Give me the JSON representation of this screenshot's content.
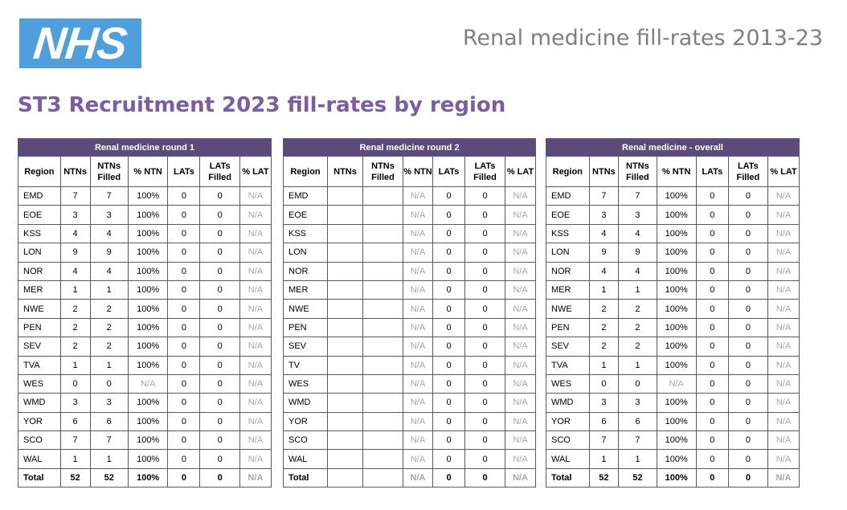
{
  "header": {
    "logo_text": "NHS",
    "document_title": "Renal medicine fill-rates 2013-23",
    "page_title": "ST3 Recruitment 2023 fill-rates by region"
  },
  "colors": {
    "logo_bg": "#4f9fdc",
    "heading_purple": "#7b5ea1",
    "table_header_bg": "#5b4a7a",
    "na_grey": "#a6a6a6"
  },
  "tables": [
    {
      "title": "Renal medicine round 1",
      "columns": [
        "Region",
        "NTNs",
        "NTNs Filled",
        "% NTN",
        "LATs",
        "LATs Filled",
        "% LAT"
      ],
      "rows": [
        [
          "EMD",
          "7",
          "7",
          "100%",
          "0",
          "0",
          "N/A"
        ],
        [
          "EOE",
          "3",
          "3",
          "100%",
          "0",
          "0",
          "N/A"
        ],
        [
          "KSS",
          "4",
          "4",
          "100%",
          "0",
          "0",
          "N/A"
        ],
        [
          "LON",
          "9",
          "9",
          "100%",
          "0",
          "0",
          "N/A"
        ],
        [
          "NOR",
          "4",
          "4",
          "100%",
          "0",
          "0",
          "N/A"
        ],
        [
          "MER",
          "1",
          "1",
          "100%",
          "0",
          "0",
          "N/A"
        ],
        [
          "NWE",
          "2",
          "2",
          "100%",
          "0",
          "0",
          "N/A"
        ],
        [
          "PEN",
          "2",
          "2",
          "100%",
          "0",
          "0",
          "N/A"
        ],
        [
          "SEV",
          "2",
          "2",
          "100%",
          "0",
          "0",
          "N/A"
        ],
        [
          "TVA",
          "1",
          "1",
          "100%",
          "0",
          "0",
          "N/A"
        ],
        [
          "WES",
          "0",
          "0",
          "N/A",
          "0",
          "0",
          "N/A"
        ],
        [
          "WMD",
          "3",
          "3",
          "100%",
          "0",
          "0",
          "N/A"
        ],
        [
          "YOR",
          "6",
          "6",
          "100%",
          "0",
          "0",
          "N/A"
        ],
        [
          "SCO",
          "7",
          "7",
          "100%",
          "0",
          "0",
          "N/A"
        ],
        [
          "WAL",
          "1",
          "1",
          "100%",
          "0",
          "0",
          "N/A"
        ]
      ],
      "total": [
        "Total",
        "52",
        "52",
        "100%",
        "0",
        "0",
        "N/A"
      ]
    },
    {
      "title": "Renal medicine round 2",
      "columns": [
        "Region",
        "NTNs",
        "NTNs Filled",
        "% NTN",
        "LATs",
        "LATs Filled",
        "% LAT"
      ],
      "rows": [
        [
          "EMD",
          "",
          "",
          "N/A",
          "0",
          "0",
          "N/A"
        ],
        [
          "EOE",
          "",
          "",
          "N/A",
          "0",
          "0",
          "N/A"
        ],
        [
          "KSS",
          "",
          "",
          "N/A",
          "0",
          "0",
          "N/A"
        ],
        [
          "LON",
          "",
          "",
          "N/A",
          "0",
          "0",
          "N/A"
        ],
        [
          "NOR",
          "",
          "",
          "N/A",
          "0",
          "0",
          "N/A"
        ],
        [
          "MER",
          "",
          "",
          "N/A",
          "0",
          "0",
          "N/A"
        ],
        [
          "NWE",
          "",
          "",
          "N/A",
          "0",
          "0",
          "N/A"
        ],
        [
          "PEN",
          "",
          "",
          "N/A",
          "0",
          "0",
          "N/A"
        ],
        [
          "SEV",
          "",
          "",
          "N/A",
          "0",
          "0",
          "N/A"
        ],
        [
          "TV",
          "",
          "",
          "N/A",
          "0",
          "0",
          "N/A"
        ],
        [
          "WES",
          "",
          "",
          "N/A",
          "0",
          "0",
          "N/A"
        ],
        [
          "WMD",
          "",
          "",
          "N/A",
          "0",
          "0",
          "N/A"
        ],
        [
          "YOR",
          "",
          "",
          "N/A",
          "0",
          "0",
          "N/A"
        ],
        [
          "SCO",
          "",
          "",
          "N/A",
          "0",
          "0",
          "N/A"
        ],
        [
          "WAL",
          "",
          "",
          "N/A",
          "0",
          "0",
          "N/A"
        ]
      ],
      "total": [
        "Total",
        "",
        "",
        "N/A",
        "0",
        "0",
        "N/A"
      ]
    },
    {
      "title": "Renal medicine - overall",
      "columns": [
        "Region",
        "NTNs",
        "NTNs Filled",
        "% NTN",
        "LATs",
        "LATs Filled",
        "% LAT"
      ],
      "rows": [
        [
          "EMD",
          "7",
          "7",
          "100%",
          "0",
          "0",
          "N/A"
        ],
        [
          "EOE",
          "3",
          "3",
          "100%",
          "0",
          "0",
          "N/A"
        ],
        [
          "KSS",
          "4",
          "4",
          "100%",
          "0",
          "0",
          "N/A"
        ],
        [
          "LON",
          "9",
          "9",
          "100%",
          "0",
          "0",
          "N/A"
        ],
        [
          "NOR",
          "4",
          "4",
          "100%",
          "0",
          "0",
          "N/A"
        ],
        [
          "MER",
          "1",
          "1",
          "100%",
          "0",
          "0",
          "N/A"
        ],
        [
          "NWE",
          "2",
          "2",
          "100%",
          "0",
          "0",
          "N/A"
        ],
        [
          "PEN",
          "2",
          "2",
          "100%",
          "0",
          "0",
          "N/A"
        ],
        [
          "SEV",
          "2",
          "2",
          "100%",
          "0",
          "0",
          "N/A"
        ],
        [
          "TVA",
          "1",
          "1",
          "100%",
          "0",
          "0",
          "N/A"
        ],
        [
          "WES",
          "0",
          "0",
          "N/A",
          "0",
          "0",
          "N/A"
        ],
        [
          "WMD",
          "3",
          "3",
          "100%",
          "0",
          "0",
          "N/A"
        ],
        [
          "YOR",
          "6",
          "6",
          "100%",
          "0",
          "0",
          "N/A"
        ],
        [
          "SCO",
          "7",
          "7",
          "100%",
          "0",
          "0",
          "N/A"
        ],
        [
          "WAL",
          "1",
          "1",
          "100%",
          "0",
          "0",
          "N/A"
        ]
      ],
      "total": [
        "Total",
        "52",
        "52",
        "100%",
        "0",
        "0",
        "N/A"
      ]
    }
  ]
}
